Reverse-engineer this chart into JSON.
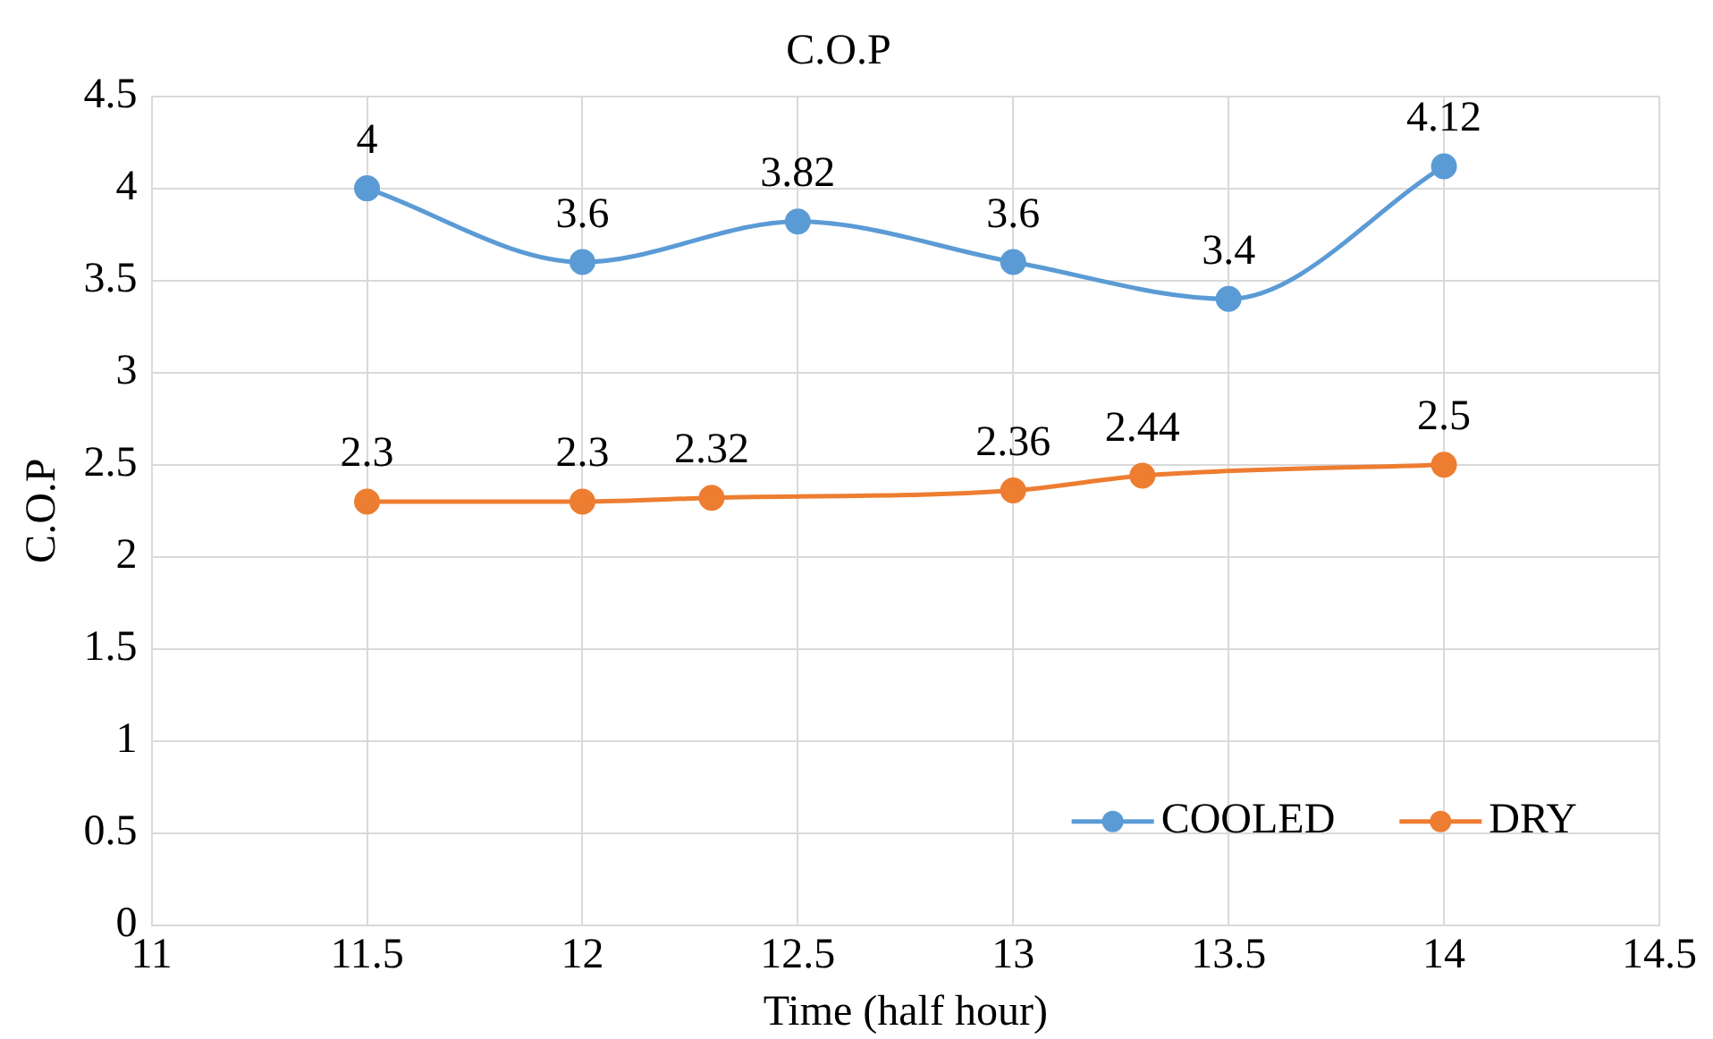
{
  "chart_data": {
    "type": "line",
    "title": "C.O.P",
    "xlabel": "Time (half hour)",
    "ylabel": "C.O.P",
    "series": [
      {
        "name": "COOLED",
        "color": "#5b9bd5",
        "x": [
          11.5,
          12,
          12.5,
          13,
          13.5,
          14
        ],
        "values": [
          4,
          3.6,
          3.82,
          3.6,
          3.4,
          4.12
        ]
      },
      {
        "name": "DRY",
        "color": "#ed7d31",
        "x": [
          11.5,
          12,
          12.3,
          13,
          13.3,
          14
        ],
        "values": [
          2.3,
          2.3,
          2.32,
          2.36,
          2.44,
          2.5
        ]
      }
    ],
    "xlim": [
      11,
      14.5
    ],
    "xticks": [
      11,
      11.5,
      12,
      12.5,
      13,
      13.5,
      14,
      14.5
    ],
    "ylim": [
      0,
      4.5
    ],
    "yticks": [
      0,
      0.5,
      1,
      1.5,
      2,
      2.5,
      3,
      3.5,
      4,
      4.5
    ],
    "grid": true,
    "legend": "bottom right",
    "marker": "circle",
    "line_style": "solid",
    "data_labels": true
  }
}
